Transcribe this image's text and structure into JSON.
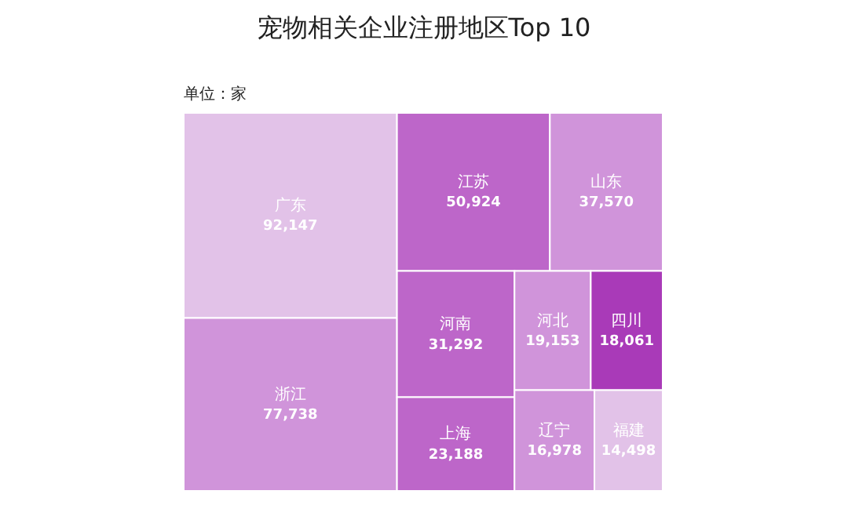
{
  "chart_data": {
    "type": "other",
    "title": "宠物相关企业注册地区Top 10",
    "subtitle": "单位：家",
    "categories": [
      "广东",
      "浙江",
      "江苏",
      "山东",
      "河南",
      "上海",
      "河北",
      "四川",
      "辽宁",
      "福建"
    ],
    "values": [
      92147,
      77738,
      50924,
      37570,
      31292,
      23188,
      19153,
      18061,
      16978,
      14498
    ],
    "colors": [
      "#e2c2e8",
      "#d094da",
      "#bd66c9",
      "#d094da",
      "#bd66c9",
      "#bd66c9",
      "#d094da",
      "#a93ab8",
      "#d094da",
      "#e2c2e8"
    ],
    "value_labels": [
      "92,147",
      "77,738",
      "50,924",
      "37,570",
      "31,292",
      "23,188",
      "19,153",
      "18,061",
      "16,978",
      "14,498"
    ]
  }
}
